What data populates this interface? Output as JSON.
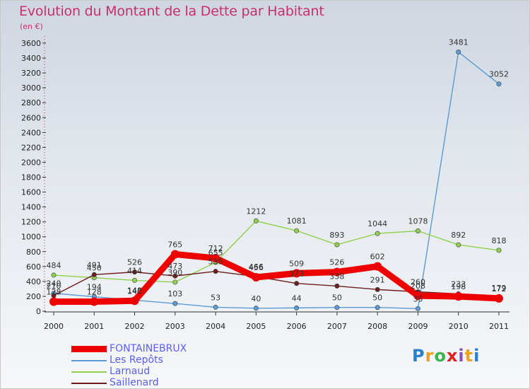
{
  "header": {
    "title": "Evolution du Montant de la Dette par Habitant",
    "subtitle": "(en €)"
  },
  "logo": {
    "text": "Proxiti",
    "colors": [
      "#2a7fcf",
      "#f0a020",
      "#3cb44b",
      "#e02020",
      "#8b4fc0",
      "#f0a020",
      "#2a7fcf"
    ]
  },
  "chart_data": {
    "type": "line",
    "title": "Evolution du Montant de la Dette par Habitant",
    "subtitle": "(en €)",
    "x": [
      "2000",
      "2001",
      "2002",
      "2003",
      "2004",
      "2005",
      "2006",
      "2007",
      "2008",
      "2009",
      "2010",
      "2011"
    ],
    "ylim": [
      0,
      3600
    ],
    "yticks": [
      0,
      200,
      400,
      600,
      800,
      1000,
      1200,
      1400,
      1600,
      1800,
      2000,
      2200,
      2400,
      2600,
      2800,
      3000,
      3200,
      3400,
      3600
    ],
    "grid": false,
    "legend_position": "bottom-left",
    "series": [
      {
        "name": "FONTAINEBRUX",
        "color": "#ee0000",
        "values": [
          128,
          128,
          140,
          765,
          712,
          456,
          509,
          526,
          602,
          208,
          198,
          172
        ]
      },
      {
        "name": "Les Repôts",
        "color": "#5b9bd5",
        "values": [
          240,
          194,
          148,
          103,
          53,
          40,
          44,
          50,
          50,
          35,
          3481,
          3052
        ]
      },
      {
        "name": "Larnaud",
        "color": "#8fd14f",
        "values": [
          484,
          450,
          414,
          390,
          655,
          1212,
          1081,
          893,
          1044,
          1078,
          892,
          818
        ]
      },
      {
        "name": "Saillenard",
        "color": "#6b1f1f",
        "values": [
          210,
          491,
          526,
          473,
          535,
          466,
          373,
          338,
          291,
          260,
          233,
          179
        ]
      }
    ]
  }
}
